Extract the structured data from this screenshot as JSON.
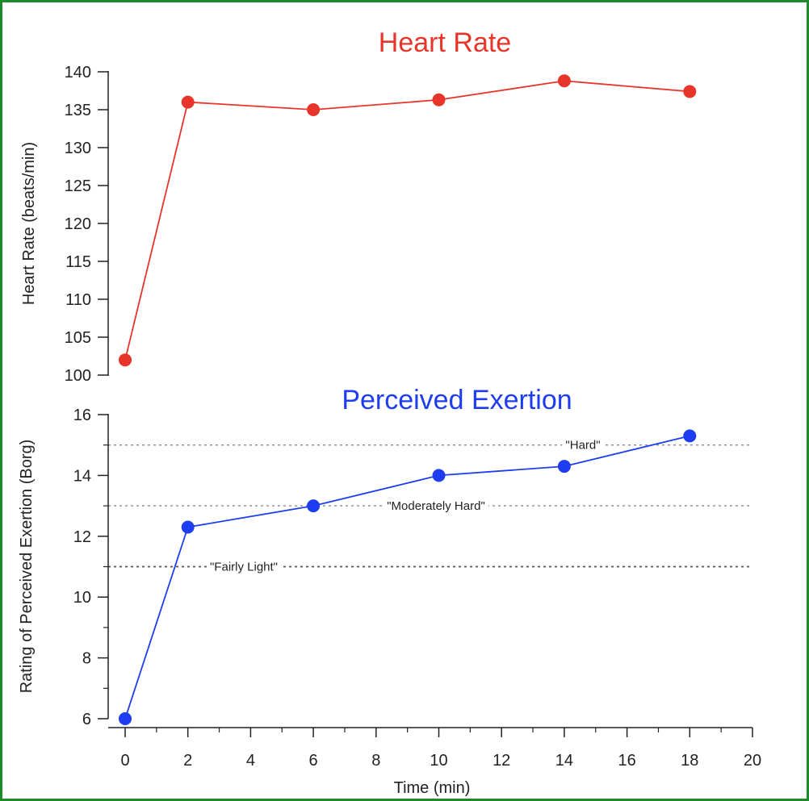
{
  "chart_data": [
    {
      "type": "line",
      "title": "Heart Rate",
      "xlabel": "",
      "ylabel": "Heart Rate (beats/min)",
      "xlim": [
        0,
        20
      ],
      "ylim": [
        100,
        140
      ],
      "y_ticks": [
        "100",
        "105",
        "110",
        "115",
        "120",
        "125",
        "130",
        "135",
        "140"
      ],
      "grid": false,
      "color": "#e8352a",
      "series": [
        {
          "x": [
            0,
            2,
            6,
            10,
            14,
            18
          ],
          "values": [
            102,
            136,
            135,
            136.3,
            138.8,
            137.4
          ]
        }
      ]
    },
    {
      "type": "line",
      "title": "Perceived Exertion",
      "xlabel": "Time (min)",
      "ylabel": "Rating of Perceived Exertion (Borg)",
      "xlim": [
        0,
        20
      ],
      "ylim": [
        6,
        16
      ],
      "x_ticks": [
        "0",
        "2",
        "4",
        "6",
        "8",
        "10",
        "12",
        "14",
        "16",
        "18",
        "20"
      ],
      "y_ticks": [
        "6",
        "8",
        "10",
        "12",
        "14",
        "16"
      ],
      "grid": false,
      "color": "#1f3df0",
      "series": [
        {
          "x": [
            0,
            2,
            6,
            10,
            14,
            18
          ],
          "values": [
            6,
            12.3,
            13,
            14,
            14.3,
            15.3
          ]
        }
      ],
      "reference_lines": [
        {
          "y": 15,
          "label": "\"Hard\""
        },
        {
          "y": 13,
          "label": "\"Moderately Hard\""
        },
        {
          "y": 11,
          "label": "\"Fairly Light\""
        }
      ]
    }
  ]
}
